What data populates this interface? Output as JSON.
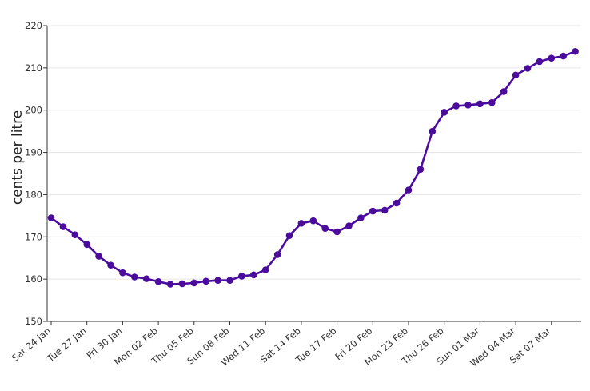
{
  "chart_data": {
    "type": "line",
    "title": "",
    "xlabel": "",
    "ylabel": "cents per litre",
    "ylim": [
      150,
      220
    ],
    "y_ticks": [
      150,
      160,
      170,
      180,
      190,
      200,
      210,
      220
    ],
    "grid": "horizontal",
    "line_color": "#4b0c9e",
    "x": [
      "2026-01-24",
      "2026-01-25",
      "2026-01-26",
      "2026-01-27",
      "2026-01-28",
      "2026-01-29",
      "2026-01-30",
      "2026-01-31",
      "2026-02-01",
      "2026-02-02",
      "2026-02-03",
      "2026-02-04",
      "2026-02-05",
      "2026-02-06",
      "2026-02-07",
      "2026-02-08",
      "2026-02-09",
      "2026-02-10",
      "2026-02-11",
      "2026-02-12",
      "2026-02-13",
      "2026-02-14",
      "2026-02-15",
      "2026-02-16",
      "2026-02-17",
      "2026-02-18",
      "2026-02-19",
      "2026-02-20",
      "2026-02-21",
      "2026-02-22",
      "2026-02-23",
      "2026-02-24",
      "2026-02-25",
      "2026-02-26",
      "2026-02-27",
      "2026-02-28",
      "2026-03-01",
      "2026-03-02",
      "2026-03-03",
      "2026-03-04",
      "2026-03-05",
      "2026-03-06",
      "2026-03-07",
      "2026-03-08",
      "2026-03-09"
    ],
    "values": [
      174.5,
      172.4,
      170.5,
      168.2,
      165.4,
      163.3,
      161.5,
      160.5,
      160.1,
      159.4,
      158.8,
      158.9,
      159.1,
      159.5,
      159.7,
      159.7,
      160.7,
      161.0,
      162.2,
      165.8,
      170.3,
      173.2,
      173.8,
      172.0,
      171.2,
      172.6,
      174.5,
      176.1,
      176.3,
      178.0,
      181.1,
      186.0,
      195.0,
      199.5,
      201.0,
      201.2,
      201.5,
      201.8,
      204.4,
      208.3,
      209.9,
      211.5,
      212.3,
      212.8,
      213.9
    ],
    "x_tick_labels": [
      "Sat 24 Jan",
      "Tue 27 Jan",
      "Fri 30 Jan",
      "Mon 02 Feb",
      "Thu 05 Feb",
      "Sun 08 Feb",
      "Wed 11 Feb",
      "Sat 14 Feb",
      "Tue 17 Feb",
      "Fri 20 Feb",
      "Mon 23 Feb",
      "Thu 26 Feb",
      "Sun 01 Mar",
      "Wed 04 Mar",
      "Sat 07 Mar"
    ]
  }
}
